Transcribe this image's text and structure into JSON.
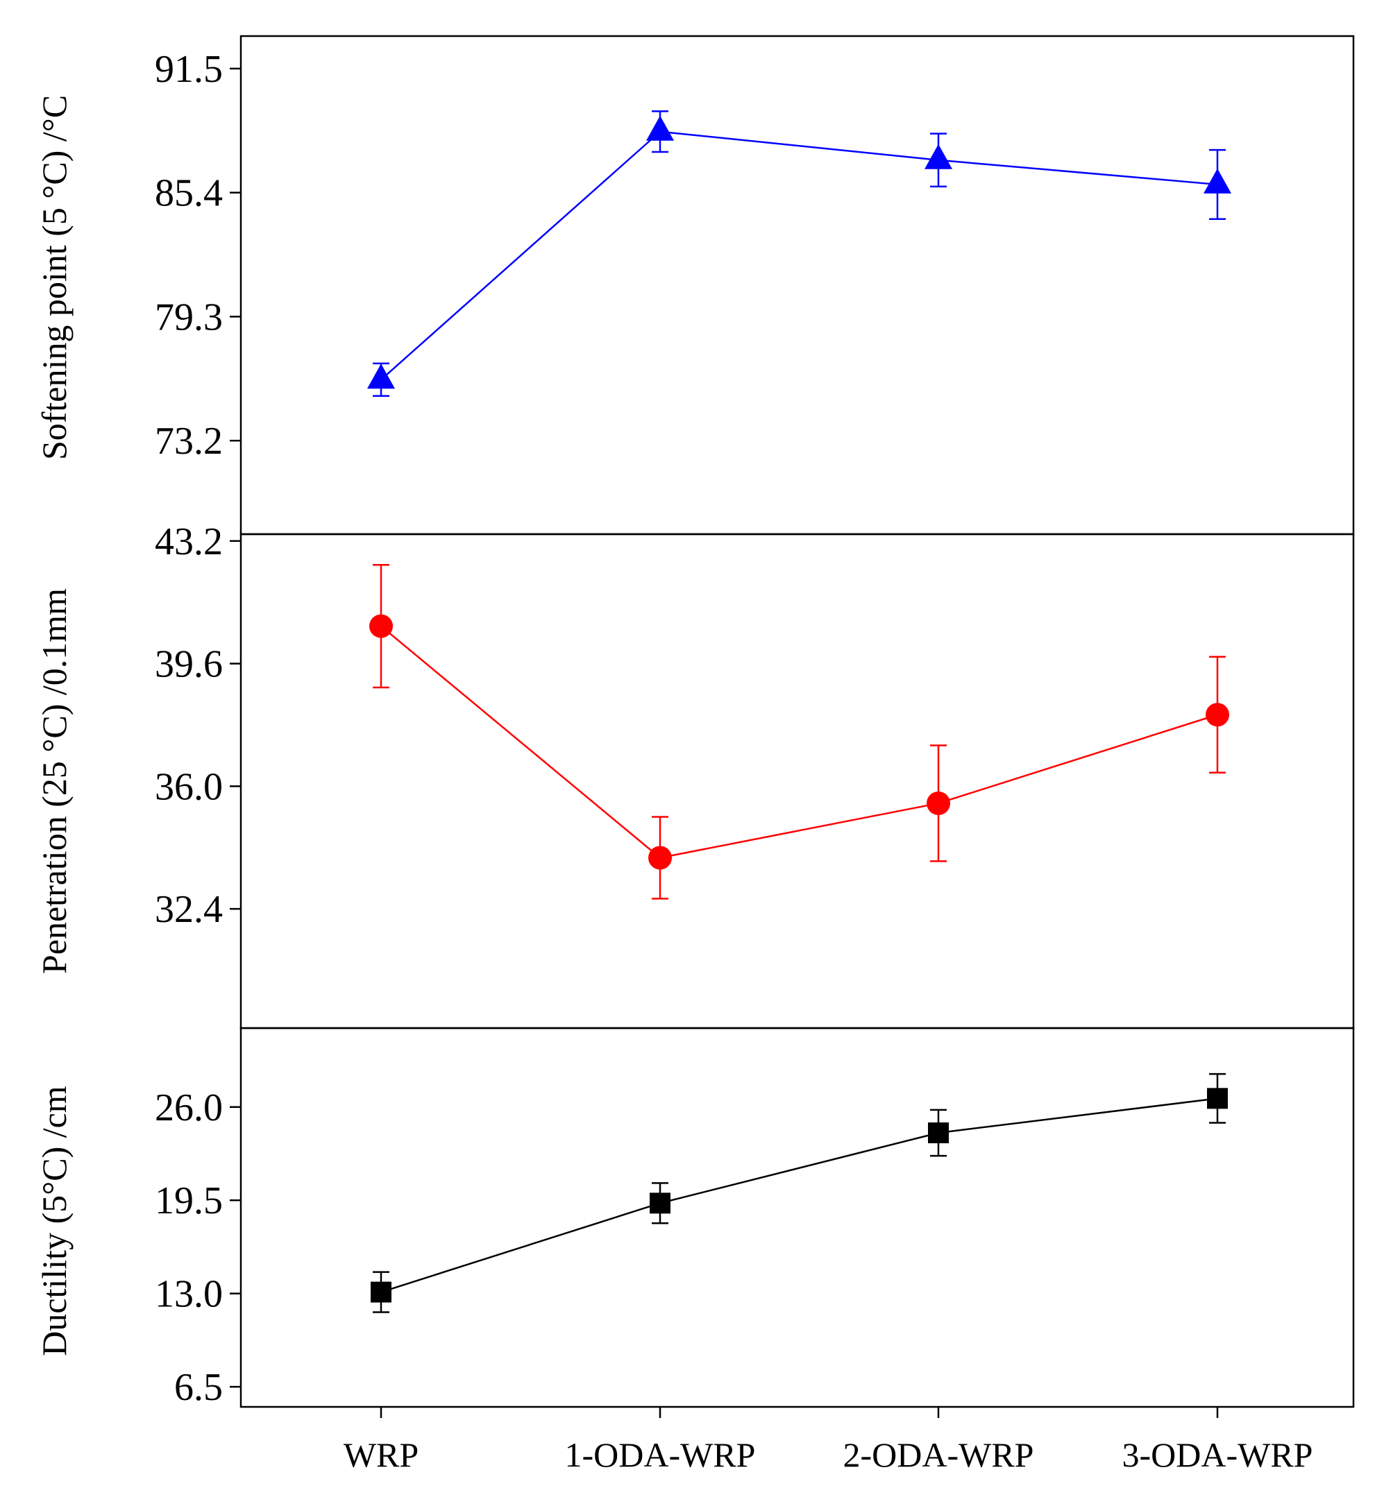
{
  "chart_data": [
    {
      "type": "line",
      "ylabel": "Softening point (5 °C) /°C",
      "categories": [
        "WRP",
        "1-ODA-WRP",
        "2-ODA-WRP",
        "3-ODA-WRP"
      ],
      "values": [
        76.2,
        88.4,
        87.0,
        85.8
      ],
      "errors": [
        0.8,
        1.0,
        1.3,
        1.7
      ],
      "marker": "triangle",
      "color": "#0000ff",
      "yticks": [
        "73.2",
        "79.3",
        "85.4",
        "91.5"
      ],
      "ylim": [
        68.6,
        93.1
      ]
    },
    {
      "type": "line",
      "ylabel": "Penetration (25 °C) /0.1mm",
      "categories": [
        "WRP",
        "1-ODA-WRP",
        "2-ODA-WRP",
        "3-ODA-WRP"
      ],
      "values": [
        40.7,
        33.9,
        35.5,
        38.1
      ],
      "errors": [
        1.8,
        1.2,
        1.7,
        1.7
      ],
      "marker": "circle",
      "color": "#ff0000",
      "yticks": [
        "32.4",
        "36.0",
        "39.6",
        "43.2"
      ],
      "ylim": [
        28.9,
        43.4
      ]
    },
    {
      "type": "line",
      "ylabel": "Ductility (5°C) /cm",
      "categories": [
        "WRP",
        "1-ODA-WRP",
        "2-ODA-WRP",
        "3-ODA-WRP"
      ],
      "values": [
        13.1,
        19.3,
        24.2,
        26.6
      ],
      "errors": [
        1.4,
        1.4,
        1.6,
        1.7
      ],
      "marker": "square",
      "color": "#000000",
      "yticks": [
        "6.5",
        "13.0",
        "19.5",
        "26.0"
      ],
      "ylim": [
        5.1,
        31.5
      ]
    }
  ]
}
